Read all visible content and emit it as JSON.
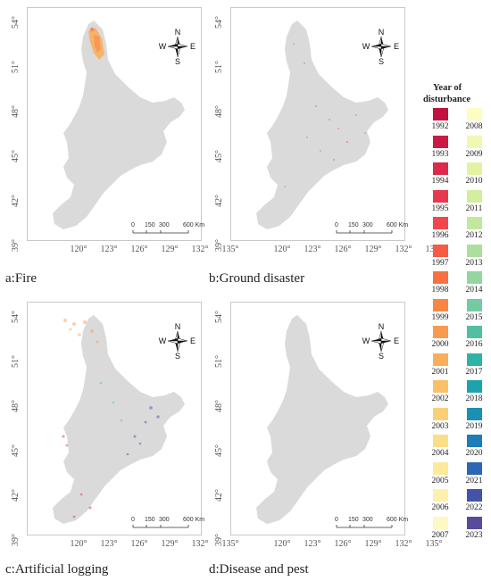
{
  "panels": [
    {
      "id": "a",
      "caption": "a:Fire"
    },
    {
      "id": "b",
      "caption": "b:Ground disaster"
    },
    {
      "id": "c",
      "caption": "c:Artificial logging"
    },
    {
      "id": "d",
      "caption": "d:Disease and pest"
    }
  ],
  "axes": {
    "lat_ticks": [
      "54°",
      "51°",
      "48°",
      "45°",
      "42°",
      "39°"
    ],
    "lon_ticks": [
      "120°",
      "123°",
      "126°",
      "129°",
      "132°",
      "135°"
    ]
  },
  "compass": {
    "n": "N",
    "s": "S",
    "e": "E",
    "w": "W"
  },
  "scale_bar": {
    "labels": [
      "0",
      "150",
      "300",
      "600 Km"
    ]
  },
  "legend": {
    "title_line1": "Year of",
    "title_line2": "disturbance",
    "years": [
      {
        "year": "1992",
        "color": "#c1123f"
      },
      {
        "year": "1993",
        "color": "#cd1a45"
      },
      {
        "year": "1994",
        "color": "#dc2a4a"
      },
      {
        "year": "1995",
        "color": "#e6394f"
      },
      {
        "year": "1996",
        "color": "#f1474c"
      },
      {
        "year": "1997",
        "color": "#f55b45"
      },
      {
        "year": "1998",
        "color": "#f86f40"
      },
      {
        "year": "1999",
        "color": "#f98643"
      },
      {
        "year": "2000",
        "color": "#f99a4f"
      },
      {
        "year": "2001",
        "color": "#f9ae5c"
      },
      {
        "year": "2002",
        "color": "#f9c069"
      },
      {
        "year": "2003",
        "color": "#fad077"
      },
      {
        "year": "2004",
        "color": "#fbde88"
      },
      {
        "year": "2005",
        "color": "#fce99a"
      },
      {
        "year": "2006",
        "color": "#fdf1ad"
      },
      {
        "year": "2007",
        "color": "#fef8c2"
      },
      {
        "year": "2008",
        "color": "#fcfdc0"
      },
      {
        "year": "2009",
        "color": "#f0f8b2"
      },
      {
        "year": "2010",
        "color": "#e3f3a4"
      },
      {
        "year": "2011",
        "color": "#d3ee9e"
      },
      {
        "year": "2012",
        "color": "#c2e89d"
      },
      {
        "year": "2013",
        "color": "#acdf9e"
      },
      {
        "year": "2014",
        "color": "#92d6a0"
      },
      {
        "year": "2015",
        "color": "#74cba2"
      },
      {
        "year": "2016",
        "color": "#52bfa3"
      },
      {
        "year": "2017",
        "color": "#2eb3a7"
      },
      {
        "year": "2018",
        "color": "#1da3ac"
      },
      {
        "year": "2019",
        "color": "#1b90b2"
      },
      {
        "year": "2020",
        "color": "#1e7cb6"
      },
      {
        "year": "2021",
        "color": "#2d66b4"
      },
      {
        "year": "2022",
        "color": "#4453a9"
      },
      {
        "year": "2023",
        "color": "#5a4a9e"
      }
    ]
  },
  "colors": {
    "region_fill": "#dadada",
    "frame": "#c9c9c9"
  }
}
